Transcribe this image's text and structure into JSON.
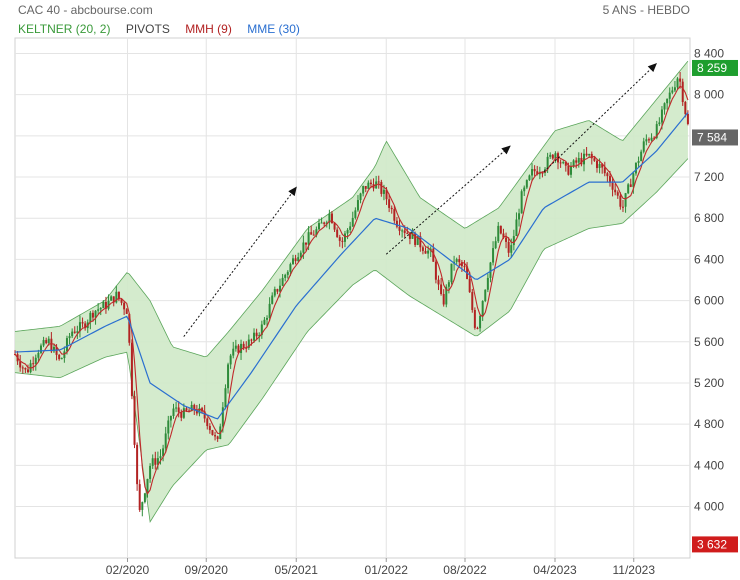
{
  "header": {
    "left": "CAC 40 - abcbourse.com",
    "right": "5 ANS - HEBDO"
  },
  "legend": {
    "items": [
      {
        "label": "KELTNER (20, 2)",
        "color": "#3a9a3a"
      },
      {
        "label": "PIVOTS",
        "color": "#444444"
      },
      {
        "label": "MMH (9)",
        "color": "#b22222"
      },
      {
        "label": "MME (30)",
        "color": "#2a6fd0"
      }
    ]
  },
  "colors": {
    "up": "#2e8b3a",
    "down": "#b22222",
    "band_fill": "#cfe9c8",
    "band_line": "#5aa55a",
    "mme": "#2a6fd0",
    "mmh": "#c0292b",
    "grid": "#e4e4e4",
    "tag_green": "#1e9e2e",
    "tag_gray": "#666666",
    "tag_red": "#d01c1c"
  },
  "chart_data": {
    "type": "candlestick",
    "y_ticks": [
      "8 400",
      "8 000",
      "7 600",
      "7 200",
      "6 800",
      "6 400",
      "6 000",
      "5 600",
      "5 200",
      "4 800",
      "4 400",
      "4 000"
    ],
    "y_values": [
      8400,
      8000,
      7600,
      7200,
      6800,
      6400,
      6000,
      5600,
      5200,
      4800,
      4400,
      4000
    ],
    "x_ticks": [
      "02/2020",
      "09/2020",
      "05/2021",
      "01/2022",
      "08/2022",
      "04/2023",
      "11/2023"
    ],
    "x_tick_dates": [
      "2020-02",
      "2020-09",
      "2021-05",
      "2022-01",
      "2022-08",
      "2023-04",
      "2023-11"
    ],
    "x_range": [
      "2019-04",
      "2024-04"
    ],
    "ylim": [
      3500,
      8550
    ],
    "price_tags": [
      {
        "label": "8 259",
        "value": 8259,
        "kind": "green"
      },
      {
        "label": "7 584",
        "value": 7584,
        "kind": "gray"
      },
      {
        "label": "3 632",
        "value": 3632,
        "kind": "red"
      }
    ],
    "close_path": [
      [
        "2019-04",
        5480
      ],
      [
        "2019-05",
        5300
      ],
      [
        "2019-06",
        5520
      ],
      [
        "2019-07",
        5600
      ],
      [
        "2019-08",
        5400
      ],
      [
        "2019-09",
        5700
      ],
      [
        "2019-10",
        5750
      ],
      [
        "2019-11",
        5900
      ],
      [
        "2019-12",
        5950
      ],
      [
        "2020-01",
        6050
      ],
      [
        "2020-02",
        5900
      ],
      [
        "2020-03",
        3900
      ],
      [
        "2020-04",
        4400
      ],
      [
        "2020-05",
        4500
      ],
      [
        "2020-06",
        4950
      ],
      [
        "2020-07",
        4900
      ],
      [
        "2020-08",
        4950
      ],
      [
        "2020-09",
        4850
      ],
      [
        "2020-10",
        4600
      ],
      [
        "2020-11",
        5450
      ],
      [
        "2020-12",
        5550
      ],
      [
        "2021-01",
        5600
      ],
      [
        "2021-02",
        5750
      ],
      [
        "2021-03",
        6050
      ],
      [
        "2021-04",
        6250
      ],
      [
        "2021-05",
        6450
      ],
      [
        "2021-06",
        6600
      ],
      [
        "2021-07",
        6700
      ],
      [
        "2021-08",
        6850
      ],
      [
        "2021-09",
        6550
      ],
      [
        "2021-10",
        6800
      ],
      [
        "2021-11",
        7100
      ],
      [
        "2021-12",
        7150
      ],
      [
        "2022-01",
        7000
      ],
      [
        "2022-02",
        6750
      ],
      [
        "2022-03",
        6650
      ],
      [
        "2022-04",
        6550
      ],
      [
        "2022-05",
        6450
      ],
      [
        "2022-06",
        5950
      ],
      [
        "2022-07",
        6400
      ],
      [
        "2022-08",
        6300
      ],
      [
        "2022-09",
        5700
      ],
      [
        "2022-10",
        6250
      ],
      [
        "2022-11",
        6700
      ],
      [
        "2022-12",
        6450
      ],
      [
        "2023-01",
        7000
      ],
      [
        "2023-02",
        7250
      ],
      [
        "2023-03",
        7300
      ],
      [
        "2023-04",
        7450
      ],
      [
        "2023-05",
        7250
      ],
      [
        "2023-06",
        7350
      ],
      [
        "2023-07",
        7400
      ],
      [
        "2023-08",
        7300
      ],
      [
        "2023-09",
        7150
      ],
      [
        "2023-10",
        6900
      ],
      [
        "2023-11",
        7250
      ],
      [
        "2023-12",
        7550
      ],
      [
        "2024-01",
        7650
      ],
      [
        "2024-02",
        7950
      ],
      [
        "2024-03",
        8200
      ],
      [
        "2024-04",
        7584
      ]
    ],
    "mme_path": [
      [
        "2019-04",
        5500
      ],
      [
        "2019-08",
        5520
      ],
      [
        "2019-12",
        5750
      ],
      [
        "2020-02",
        5850
      ],
      [
        "2020-04",
        5200
      ],
      [
        "2020-07",
        4980
      ],
      [
        "2020-10",
        4850
      ],
      [
        "2021-01",
        5300
      ],
      [
        "2021-05",
        5950
      ],
      [
        "2021-09",
        6450
      ],
      [
        "2021-12",
        6800
      ],
      [
        "2022-03",
        6700
      ],
      [
        "2022-06",
        6450
      ],
      [
        "2022-09",
        6200
      ],
      [
        "2022-12",
        6400
      ],
      [
        "2023-03",
        6900
      ],
      [
        "2023-07",
        7150
      ],
      [
        "2023-10",
        7150
      ],
      [
        "2024-01",
        7450
      ],
      [
        "2024-04",
        7850
      ]
    ],
    "band_upper": [
      [
        "2019-04",
        5700
      ],
      [
        "2019-08",
        5750
      ],
      [
        "2019-12",
        6000
      ],
      [
        "2020-02",
        6280
      ],
      [
        "2020-04",
        6000
      ],
      [
        "2020-06",
        5550
      ],
      [
        "2020-09",
        5450
      ],
      [
        "2020-11",
        5700
      ],
      [
        "2021-02",
        6100
      ],
      [
        "2021-06",
        6700
      ],
      [
        "2021-10",
        7000
      ],
      [
        "2021-12",
        7300
      ],
      [
        "2022-01",
        7550
      ],
      [
        "2022-04",
        7000
      ],
      [
        "2022-08",
        6700
      ],
      [
        "2022-11",
        6900
      ],
      [
        "2023-01",
        7200
      ],
      [
        "2023-04",
        7650
      ],
      [
        "2023-07",
        7750
      ],
      [
        "2023-10",
        7550
      ],
      [
        "2024-01",
        7950
      ],
      [
        "2024-04",
        8350
      ]
    ],
    "band_lower": [
      [
        "2019-04",
        5300
      ],
      [
        "2019-08",
        5250
      ],
      [
        "2019-12",
        5450
      ],
      [
        "2020-02",
        5500
      ],
      [
        "2020-04",
        3850
      ],
      [
        "2020-06",
        4200
      ],
      [
        "2020-09",
        4550
      ],
      [
        "2020-11",
        4600
      ],
      [
        "2021-02",
        5050
      ],
      [
        "2021-06",
        5700
      ],
      [
        "2021-10",
        6150
      ],
      [
        "2021-12",
        6300
      ],
      [
        "2022-03",
        6050
      ],
      [
        "2022-06",
        5850
      ],
      [
        "2022-09",
        5650
      ],
      [
        "2022-12",
        5900
      ],
      [
        "2023-03",
        6500
      ],
      [
        "2023-07",
        6700
      ],
      [
        "2023-10",
        6750
      ],
      [
        "2024-01",
        7050
      ],
      [
        "2024-04",
        7400
      ]
    ],
    "trend_arrows": [
      {
        "from": [
          "2020-07",
          5650
        ],
        "to": [
          "2021-05",
          7100
        ]
      },
      {
        "from": [
          "2022-01",
          6450
        ],
        "to": [
          "2022-12",
          7500
        ]
      },
      {
        "from": [
          "2023-03",
          7250
        ],
        "to": [
          "2024-01",
          8300
        ]
      }
    ]
  }
}
